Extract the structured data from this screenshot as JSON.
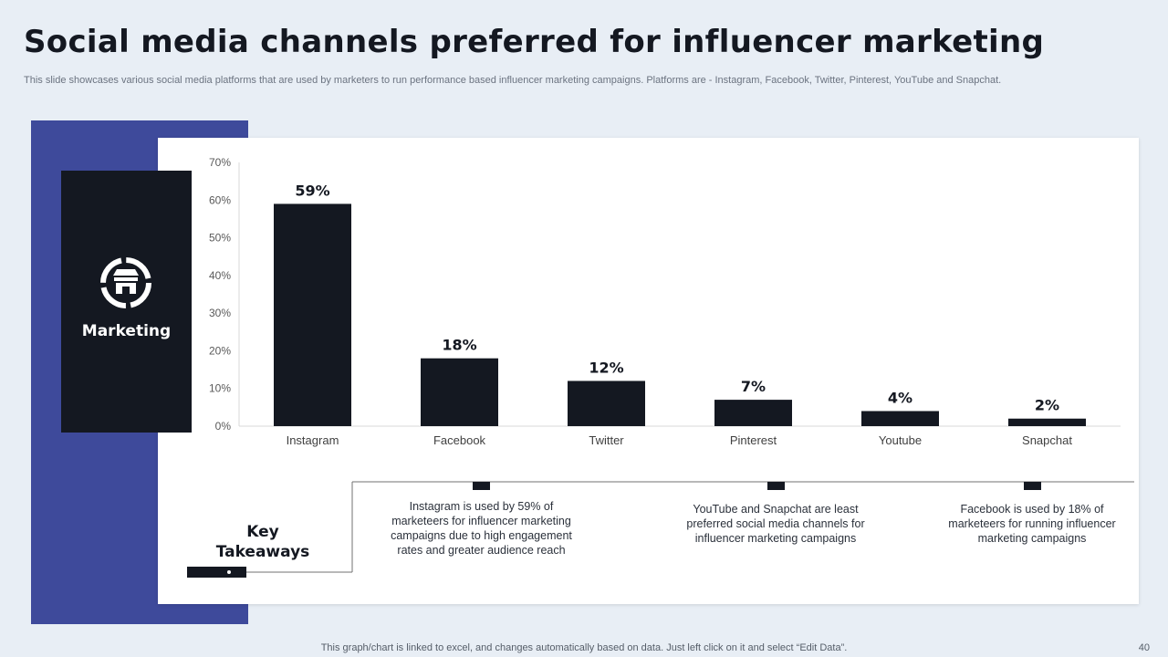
{
  "slide": {
    "title": "Social media channels preferred for influencer marketing",
    "subtitle": "This slide showcases various social media platforms that are used by marketers to run performance based influencer marketing campaigns. Platforms are - Instagram, Facebook, Twitter, Pinterest, YouTube and Snapchat.",
    "footer_note": "This graph/chart is linked to excel,  and changes automatically based on data. Just left click on it and select “Edit Data”.",
    "page_number": "40"
  },
  "card": {
    "label": "Marketing",
    "icon": "storefront-icon"
  },
  "key_takeaways": {
    "title_line1": "Key",
    "title_line2": "Takeaways",
    "items": [
      "Instagram is used by 59% of marketeers for influencer marketing campaigns due to high engagement rates and greater audience reach",
      "YouTube and Snapchat are least preferred  social media channels for influencer marketing campaigns",
      "Facebook is used by 18% of marketeers for running influencer marketing campaigns"
    ]
  },
  "colors": {
    "accent_blue": "#3e4a9b",
    "bar": "#141821",
    "background": "#e8eef5"
  },
  "chart_data": {
    "type": "bar",
    "categories": [
      "Instagram",
      "Facebook",
      "Twitter",
      "Pinterest",
      "Youtube",
      "Snapchat"
    ],
    "values": [
      59,
      18,
      12,
      7,
      4,
      2
    ],
    "data_labels": [
      "59%",
      "18%",
      "12%",
      "7%",
      "4%",
      "2%"
    ],
    "yticks": [
      0,
      10,
      20,
      30,
      40,
      50,
      60,
      70
    ],
    "ytick_labels": [
      "0%",
      "10%",
      "20%",
      "30%",
      "40%",
      "50%",
      "60%",
      "70%"
    ],
    "ylim": [
      0,
      70
    ],
    "title": "",
    "xlabel": "",
    "ylabel": "",
    "grid": false,
    "legend": "none"
  }
}
